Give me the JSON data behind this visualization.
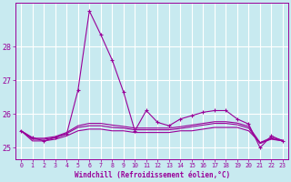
{
  "xlabel": "Windchill (Refroidissement éolien,°C)",
  "background_color": "#c8eaf0",
  "grid_color": "#ffffff",
  "line_color": "#990099",
  "ylim": [
    24.65,
    29.3
  ],
  "yticks": [
    25,
    26,
    27,
    28
  ],
  "xlim": [
    -0.5,
    23.5
  ],
  "xticks": [
    0,
    1,
    2,
    3,
    4,
    5,
    6,
    7,
    8,
    9,
    10,
    11,
    12,
    13,
    14,
    15,
    16,
    17,
    18,
    19,
    20,
    21,
    22,
    23
  ],
  "series": [
    [
      25.5,
      25.3,
      25.2,
      25.3,
      25.4,
      26.7,
      29.05,
      28.35,
      27.6,
      26.65,
      25.5,
      26.1,
      25.75,
      25.65,
      25.85,
      25.95,
      26.05,
      26.1,
      26.1,
      25.85,
      25.7,
      25.0,
      25.35,
      25.2
    ],
    [
      25.5,
      25.2,
      25.2,
      25.25,
      25.35,
      25.5,
      25.55,
      25.55,
      25.5,
      25.5,
      25.45,
      25.45,
      25.45,
      25.45,
      25.5,
      25.5,
      25.55,
      25.6,
      25.6,
      25.6,
      25.5,
      25.15,
      25.25,
      25.2
    ],
    [
      25.5,
      25.25,
      25.25,
      25.3,
      25.42,
      25.6,
      25.65,
      25.65,
      25.6,
      25.58,
      25.53,
      25.53,
      25.53,
      25.53,
      25.57,
      25.62,
      25.67,
      25.72,
      25.72,
      25.68,
      25.58,
      25.12,
      25.27,
      25.2
    ],
    [
      25.5,
      25.28,
      25.28,
      25.33,
      25.45,
      25.65,
      25.72,
      25.72,
      25.67,
      25.63,
      25.58,
      25.58,
      25.58,
      25.58,
      25.62,
      25.67,
      25.72,
      25.77,
      25.77,
      25.73,
      25.63,
      25.15,
      25.3,
      25.22
    ]
  ]
}
